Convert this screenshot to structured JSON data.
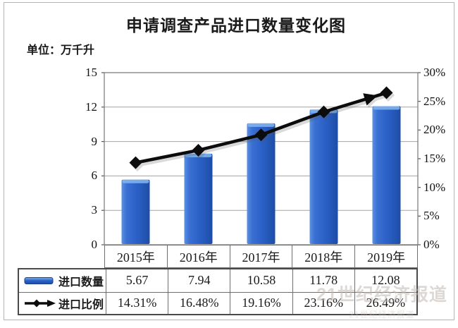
{
  "header": {
    "title": "申请调查产品进口数量变化图",
    "unit_label": "单位：万千升"
  },
  "chart_data": {
    "type": "combo-bar-line",
    "title": "申请调查产品进口数量变化图",
    "unit": "万千升",
    "categories": [
      "2015年",
      "2016年",
      "2017年",
      "2018年",
      "2019年"
    ],
    "series": [
      {
        "name": "进口数量",
        "type": "bar",
        "axis": "left",
        "values": [
          5.67,
          7.94,
          10.58,
          11.78,
          12.08
        ],
        "labels": [
          "5.67",
          "7.94",
          "10.58",
          "11.78",
          "12.08"
        ],
        "color": "#2a60c6"
      },
      {
        "name": "进口比例",
        "type": "line",
        "axis": "right",
        "marker": "diamond",
        "end_arrow": true,
        "values": [
          14.31,
          16.48,
          19.16,
          23.16,
          26.49
        ],
        "labels": [
          "14.31%",
          "16.48%",
          "19.16%",
          "23.16%",
          "26.49%"
        ],
        "color": "#0c0c0c"
      }
    ],
    "left_axis": {
      "min": 0,
      "max": 15,
      "tick_step": 3,
      "tick_labels": [
        "15",
        "12",
        "9",
        "6",
        "3",
        "0"
      ]
    },
    "right_axis": {
      "min": 0,
      "max": 30,
      "tick_step": 5,
      "tick_labels": [
        "30%",
        "25%",
        "20%",
        "15%",
        "10%",
        "5%",
        "0%"
      ]
    },
    "grid": "horizontal",
    "legend_position": "table-left-column"
  },
  "watermark": {
    "line1": "21世纪经济报道",
    "line2": "21世纪经济报道"
  },
  "colors": {
    "bar_main": "#2a60c6",
    "bar_highlight": "#7fb2ee",
    "bar_dark": "#1d4da8",
    "line": "#0c0c0c",
    "gridline": "#a3a3a3",
    "plot_border": "#7f7f7f",
    "table_border_outer": "#4a4a4a",
    "table_border_inner": "#6e6e6e",
    "frame_border": "#b5b5b5",
    "text": "#1a1a1a",
    "watermark": "#c4bcb4"
  }
}
